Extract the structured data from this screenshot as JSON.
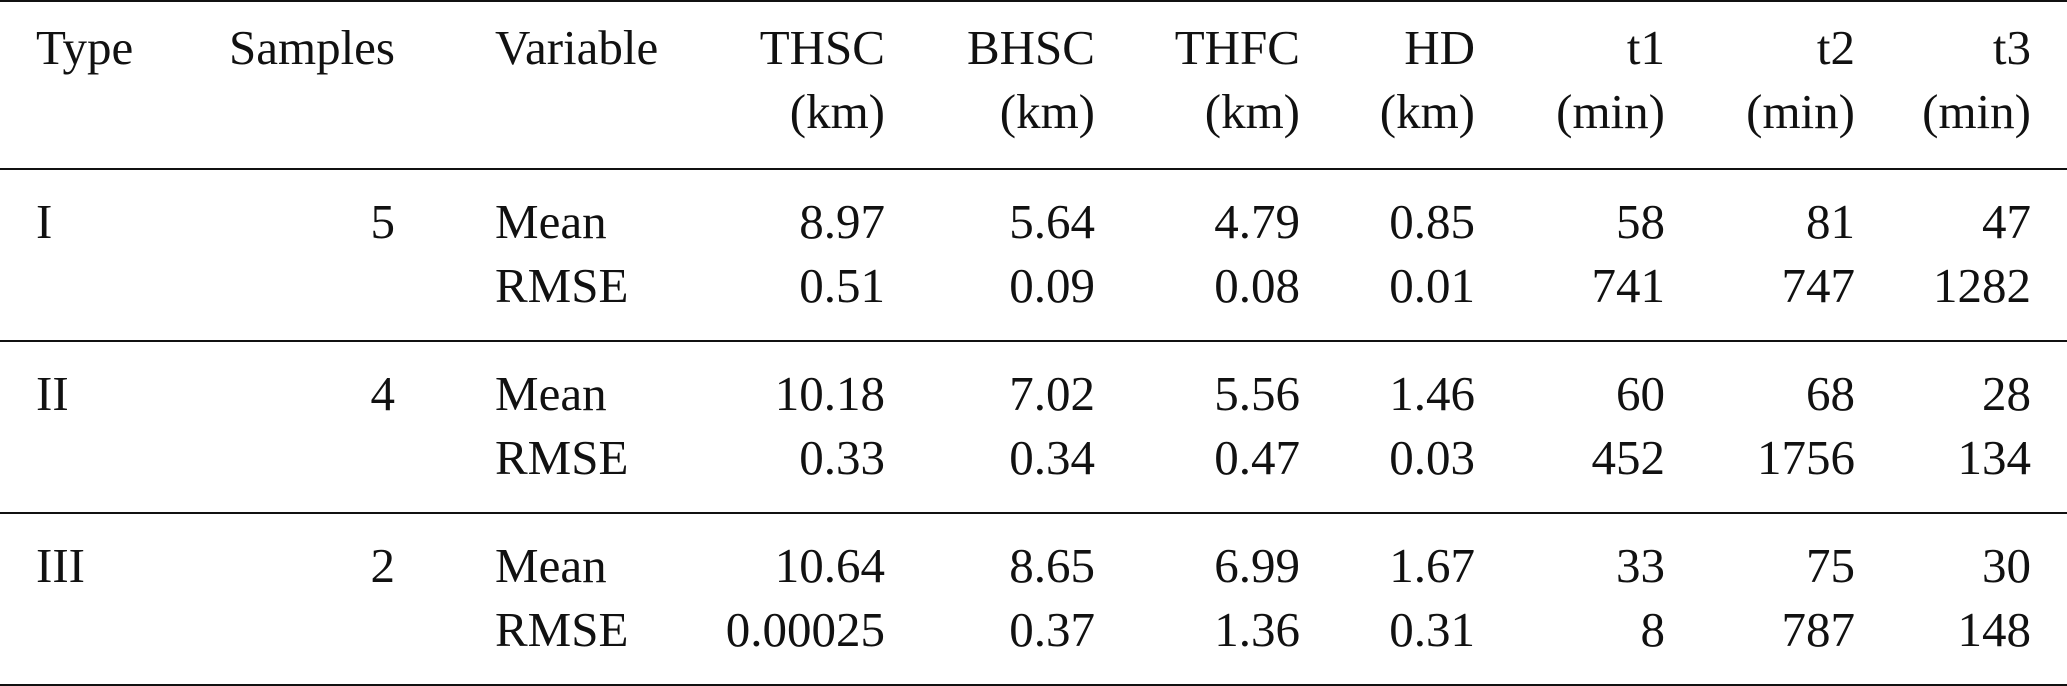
{
  "table": {
    "headers": [
      {
        "line1": "Type",
        "line2": ""
      },
      {
        "line1": "Samples",
        "line2": ""
      },
      {
        "line1": "Variable",
        "line2": ""
      },
      {
        "line1": "THSC",
        "line2": "(km)"
      },
      {
        "line1": "BHSC",
        "line2": "(km)"
      },
      {
        "line1": "THFC",
        "line2": "(km)"
      },
      {
        "line1": "HD",
        "line2": "(km)"
      },
      {
        "line1": "t1",
        "line2": "(min)"
      },
      {
        "line1": "t2",
        "line2": "(min)"
      },
      {
        "line1": "t3",
        "line2": "(min)"
      }
    ],
    "groups": [
      {
        "type": "I",
        "samples": "5",
        "rows": [
          {
            "variable": "Mean",
            "values": [
              "8.97",
              "5.64",
              "4.79",
              "0.85",
              "58",
              "81",
              "47"
            ]
          },
          {
            "variable": "RMSE",
            "values": [
              "0.51",
              "0.09",
              "0.08",
              "0.01",
              "741",
              "747",
              "1282"
            ]
          }
        ]
      },
      {
        "type": "II",
        "samples": "4",
        "rows": [
          {
            "variable": "Mean",
            "values": [
              "10.18",
              "7.02",
              "5.56",
              "1.46",
              "60",
              "68",
              "28"
            ]
          },
          {
            "variable": "RMSE",
            "values": [
              "0.33",
              "0.34",
              "0.47",
              "0.03",
              "452",
              "1756",
              "134"
            ]
          }
        ]
      },
      {
        "type": "III",
        "samples": "2",
        "rows": [
          {
            "variable": "Mean",
            "values": [
              "10.64",
              "8.65",
              "6.99",
              "1.67",
              "33",
              "75",
              "30"
            ]
          },
          {
            "variable": "RMSE",
            "values": [
              "0.00025",
              "0.37",
              "1.36",
              "0.31",
              "8",
              "787",
              "148"
            ]
          }
        ]
      }
    ]
  }
}
